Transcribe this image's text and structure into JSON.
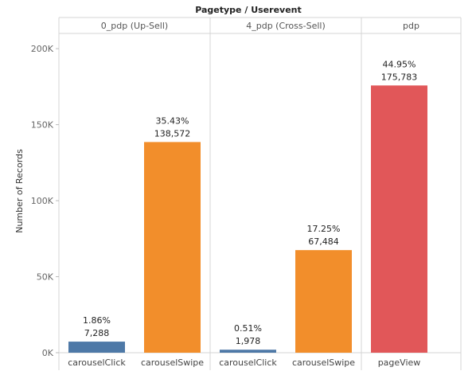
{
  "chart_data": {
    "type": "bar",
    "column_header_title": "Pagetype / Userevent",
    "ylabel": "Number of Records",
    "ylim": [
      0,
      210000
    ],
    "yticks": [
      {
        "value": 0,
        "label": "0K"
      },
      {
        "value": 50000,
        "label": "50K"
      },
      {
        "value": 100000,
        "label": "100K"
      },
      {
        "value": 150000,
        "label": "150K"
      },
      {
        "value": 200000,
        "label": "200K"
      }
    ],
    "grid": false,
    "panes": [
      {
        "label": "0_pdp (Up-Sell)",
        "bars": [
          {
            "category": "carouselClick",
            "value": 7288,
            "value_label": "7,288",
            "percent_label": "1.86%",
            "color": "#4e79a7"
          },
          {
            "category": "carouselSwipe",
            "value": 138572,
            "value_label": "138,572",
            "percent_label": "35.43%",
            "color": "#f28e2b"
          }
        ]
      },
      {
        "label": "4_pdp (Cross-Sell)",
        "bars": [
          {
            "category": "carouselClick",
            "value": 1978,
            "value_label": "1,978",
            "percent_label": "0.51%",
            "color": "#4e79a7"
          },
          {
            "category": "carouselSwipe",
            "value": 67484,
            "value_label": "67,484",
            "percent_label": "17.25%",
            "color": "#f28e2b"
          }
        ]
      },
      {
        "label": "pdp",
        "bars": [
          {
            "category": "pageView",
            "value": 175783,
            "value_label": "175,783",
            "percent_label": "44.95%",
            "color": "#e15759"
          }
        ]
      }
    ]
  }
}
